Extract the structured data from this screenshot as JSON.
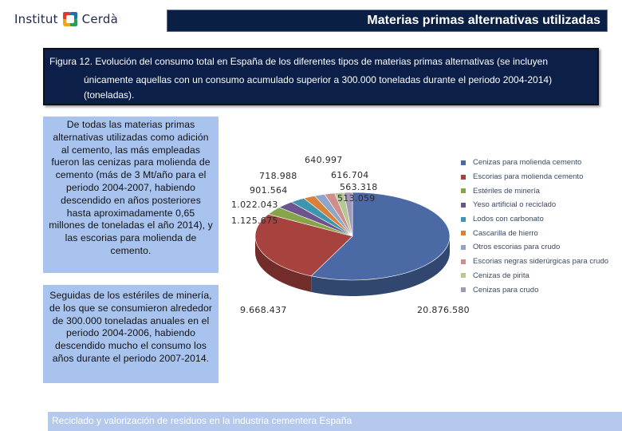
{
  "logo": {
    "word_left": "Institut",
    "word_right": "Cerdà"
  },
  "header": {
    "title": "Materias primas alternativas utilizadas"
  },
  "caption": {
    "line1": "Figura 12. Evolución del consumo total en España de los diferentes tipos de materias primas alternativas (se incluyen",
    "line2": "únicamente aquellas con un consumo acumulado superior a 300.000 toneladas durante el periodo 2004-2014)",
    "line3": "(toneladas)."
  },
  "text_boxes": {
    "box1": "De todas las materias primas alternativas utilizadas como adición al cemento, las más empleadas fueron las cenizas para molienda de cemento (más de 3 Mt/año para el periodo 2004-2007, habiendo descendido en años posteriores hasta aproximadamente 0,65 millones de toneladas el año 2014), y las escorias para molienda de cemento.",
    "box2": "Seguidas de los estériles de minería, de los que se consumieron alrededor de 300.000 toneladas anuales en el periodo 2004-2006, habiendo descendido mucho el consumo los años durante el periodo 2007-2014."
  },
  "footer": {
    "text": "Reciclado y valorización de residuos en la industria cementera España"
  },
  "chart_data": {
    "type": "pie",
    "title": "",
    "categories": [
      "Cenizas para molienda cemento",
      "Escorias para molienda cemento",
      "Estériles de minería",
      "Yeso artificial o reciclado",
      "Lodos con carbonato",
      "Cascarilla de hierro",
      "Otros escorias para crudo",
      "Escorias negras siderúrgicas para crudo",
      "Cenizas de pirita",
      "Cenizas para crudo"
    ],
    "values": [
      20876580,
      9668437,
      1125675,
      1022043,
      901564,
      718988,
      640997,
      616704,
      563318,
      513059
    ],
    "labels": [
      "20.876.580",
      "9.668.437",
      "1.125.675",
      "1.022.043",
      "901.564",
      "718.988",
      "640.997",
      "616.704",
      "563.318",
      "513.059"
    ],
    "colors": [
      "#4a69a5",
      "#a8423f",
      "#86a44a",
      "#6e548d",
      "#3d96ae",
      "#da8137",
      "#8ea5cb",
      "#cf8d8b",
      "#b5ca92",
      "#a597b8"
    ],
    "legend_position": "right"
  }
}
